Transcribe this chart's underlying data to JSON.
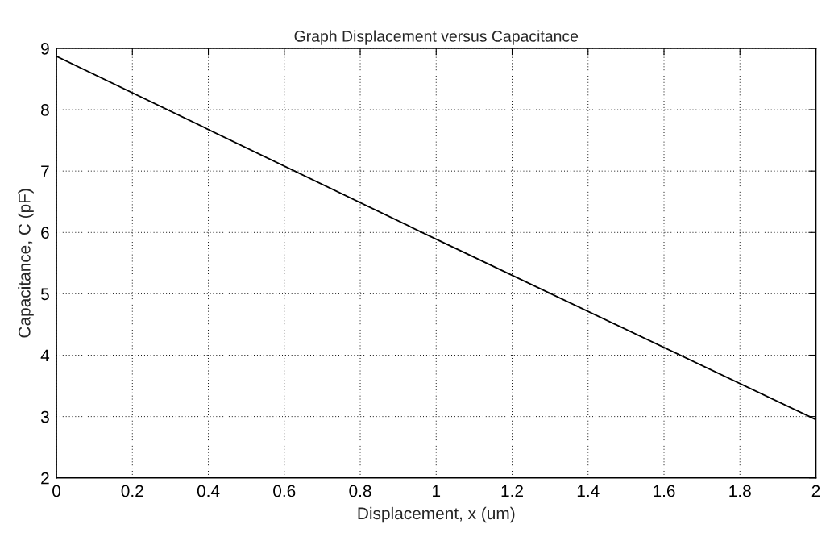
{
  "chart_data": {
    "type": "line",
    "title": "Graph Displacement versus Capacitance",
    "xlabel": "Displacement, x (um)",
    "ylabel": "Capacitance, C (pF)",
    "x": [
      0,
      1,
      2
    ],
    "series": [
      {
        "color": "#000000",
        "values": [
          8.87,
          5.89,
          2.95
        ]
      }
    ],
    "xlim": [
      0,
      2
    ],
    "ylim": [
      2,
      9
    ],
    "xticks": [
      0,
      0.2,
      0.4,
      0.6,
      0.8,
      1,
      1.2,
      1.4,
      1.6,
      1.8,
      2
    ],
    "yticks": [
      2,
      3,
      4,
      5,
      6,
      7,
      8,
      9
    ],
    "grid": true,
    "marker": "none",
    "line_style": "solid"
  }
}
